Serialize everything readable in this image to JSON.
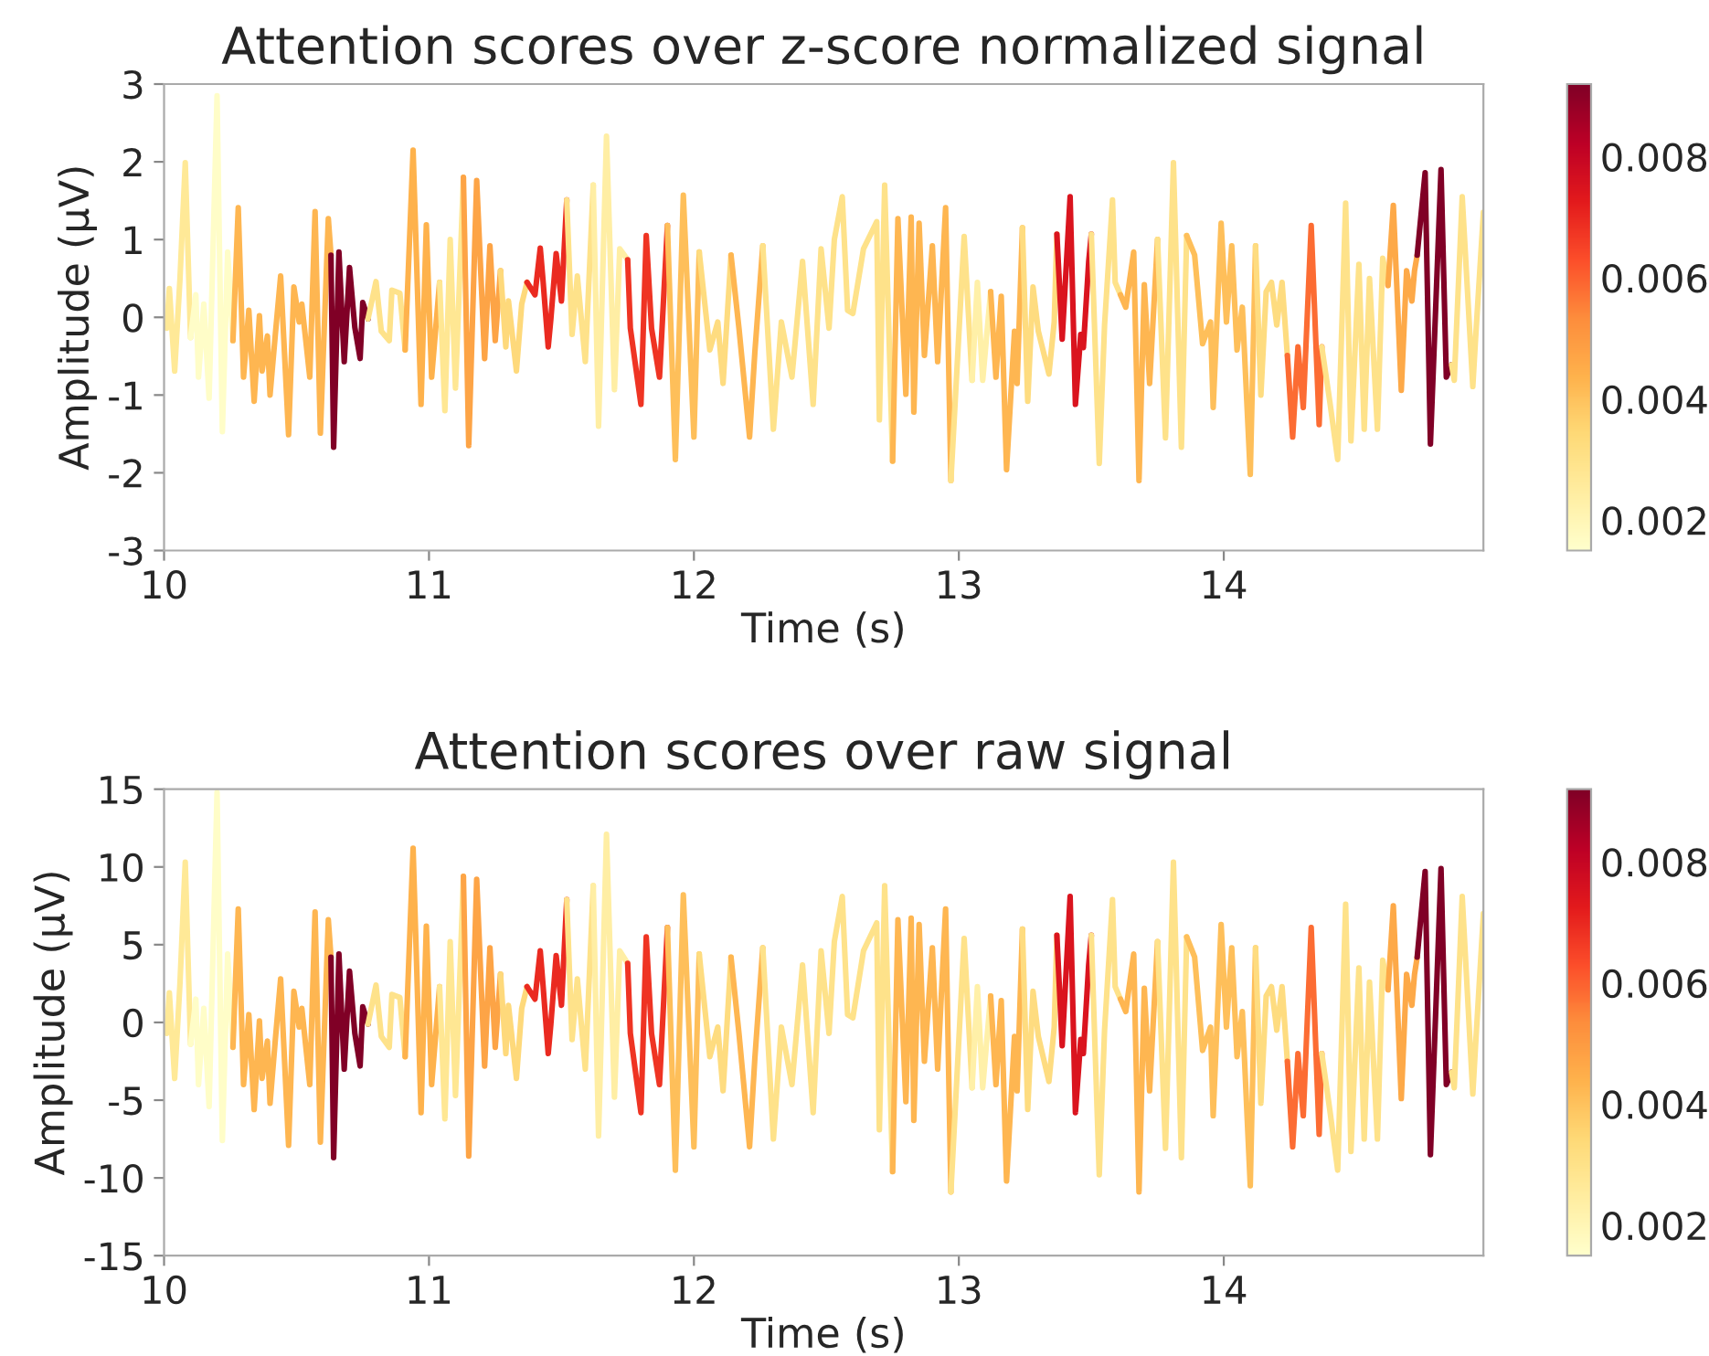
{
  "chart_data": [
    {
      "type": "line",
      "title": "Attention scores over z-score normalized signal",
      "xlabel": "Time (s)",
      "ylabel": "Amplitude (µV)",
      "xlim": [
        10,
        14.98
      ],
      "xticks": [
        10,
        11,
        12,
        13,
        14
      ],
      "ylim": [
        -3,
        3
      ],
      "yticks": [
        -3,
        -2,
        -1,
        0,
        1,
        2,
        3
      ],
      "clim": [
        0.0015,
        0.0092
      ],
      "cticks": [
        0.002,
        0.004,
        0.006,
        0.008
      ],
      "grid": false,
      "series": [
        {
          "color": "#ffe997",
          "x": [
            10.01,
            10.02,
            10.04,
            10.06,
            10.08,
            10.1
          ],
          "values": [
            -0.14,
            0.37,
            -0.69,
            0.49,
            1.99,
            -0.26
          ]
        },
        {
          "color": "#fffdc8",
          "x": [
            10.1,
            10.12,
            10.13,
            10.15,
            10.17,
            10.2,
            10.22,
            10.24,
            10.26
          ],
          "values": [
            -0.26,
            0.29,
            -0.77,
            0.17,
            -1.04,
            2.85,
            -1.47,
            0.84,
            -0.3
          ]
        },
        {
          "color": "#feb651",
          "x": [
            10.26,
            10.28,
            10.3,
            10.32,
            10.34,
            10.36,
            10.37,
            10.39,
            10.4,
            10.42,
            10.44,
            10.47,
            10.49,
            10.51,
            10.52,
            10.55,
            10.57,
            10.59,
            10.62,
            10.63
          ],
          "values": [
            -0.3,
            1.41,
            -0.77,
            0.09,
            -1.08,
            0.02,
            -0.69,
            -0.24,
            -1.0,
            -0.22,
            0.53,
            -1.51,
            0.39,
            -0.06,
            0.17,
            -0.77,
            1.36,
            -1.49,
            1.27,
            0.8
          ]
        },
        {
          "color": "#800026",
          "x": [
            10.63,
            10.64,
            10.66,
            10.68,
            10.7,
            10.72,
            10.74,
            10.75,
            10.77
          ],
          "values": [
            0.8,
            -1.67,
            0.84,
            -0.57,
            0.64,
            -0.13,
            -0.53,
            0.19,
            -0.02
          ]
        },
        {
          "color": "#fee28a",
          "x": [
            10.77,
            10.8,
            10.82,
            10.85,
            10.86,
            10.89,
            10.91
          ],
          "values": [
            -0.02,
            0.46,
            -0.18,
            -0.3,
            0.35,
            0.31,
            -0.42
          ]
        },
        {
          "color": "#feb24c",
          "x": [
            10.91,
            10.94,
            10.97,
            10.99,
            11.01,
            11.04
          ],
          "values": [
            -0.42,
            2.15,
            -1.12,
            1.19,
            -0.77,
            0.45
          ]
        },
        {
          "color": "#ffe793",
          "x": [
            11.04,
            11.06,
            11.08,
            11.1,
            11.13
          ],
          "values": [
            0.45,
            -1.2,
            1.0,
            -0.91,
            1.8
          ]
        },
        {
          "color": "#fda446",
          "x": [
            11.13,
            11.15,
            11.18,
            11.21,
            11.23,
            11.25,
            11.27
          ],
          "values": [
            1.8,
            -1.65,
            1.76,
            -0.53,
            0.92,
            -0.3,
            0.6
          ]
        },
        {
          "color": "#fed97b",
          "x": [
            11.27,
            11.29,
            11.3,
            11.33,
            11.35,
            11.37
          ],
          "values": [
            0.6,
            -0.38,
            0.21,
            -0.69,
            0.17,
            0.45
          ]
        },
        {
          "color": "#ea2a20",
          "x": [
            11.37,
            11.4,
            11.42,
            11.43,
            11.45,
            11.46,
            11.48,
            11.5,
            11.52
          ],
          "values": [
            0.45,
            0.29,
            0.89,
            0.49,
            -0.38,
            -0.02,
            0.82,
            0.21,
            1.51
          ]
        },
        {
          "color": "#fee28a",
          "x": [
            11.52,
            11.54,
            11.56,
            11.59,
            11.62
          ],
          "values": [
            1.51,
            -0.22,
            0.53,
            -0.57,
            1.7
          ]
        },
        {
          "color": "#ffeea4",
          "x": [
            11.62,
            11.64,
            11.67,
            11.7,
            11.72,
            11.75
          ],
          "values": [
            1.7,
            -1.4,
            2.33,
            -0.93,
            0.88,
            0.74
          ]
        },
        {
          "color": "#ef3423",
          "x": [
            11.75,
            11.76,
            11.8,
            11.82,
            11.84,
            11.87,
            11.9
          ],
          "values": [
            0.74,
            -0.14,
            -1.12,
            1.05,
            -0.14,
            -0.77,
            1.18
          ]
        },
        {
          "color": "#febf5a",
          "x": [
            11.9,
            11.93,
            11.96,
            12.0,
            12.02
          ],
          "values": [
            1.18,
            -1.83,
            1.57,
            -1.54,
            0.84
          ]
        },
        {
          "color": "#fedc80",
          "x": [
            12.02,
            12.06,
            12.09,
            12.11,
            12.14
          ],
          "values": [
            0.84,
            -0.42,
            -0.06,
            -0.85,
            0.8
          ]
        },
        {
          "color": "#feb651",
          "x": [
            12.14,
            12.17,
            12.21,
            12.23,
            12.26
          ],
          "values": [
            0.8,
            -0.14,
            -1.54,
            -0.45,
            0.92
          ]
        },
        {
          "color": "#fee28a",
          "x": [
            12.26,
            12.3,
            12.33,
            12.37,
            12.41,
            12.45,
            12.48,
            12.51,
            12.53,
            12.56,
            12.58,
            12.6,
            12.64,
            12.69,
            12.7,
            12.72,
            12.75
          ],
          "values": [
            0.92,
            -1.44,
            -0.06,
            -0.77,
            0.72,
            -1.12,
            0.88,
            -0.14,
            1.0,
            1.55,
            0.09,
            0.05,
            0.88,
            1.23,
            -1.32,
            1.7,
            -1.85
          ]
        },
        {
          "color": "#feb651",
          "x": [
            12.75,
            12.77,
            12.8,
            12.82,
            12.83,
            12.85,
            12.87,
            12.9,
            12.92,
            12.95,
            12.97
          ],
          "values": [
            -1.85,
            1.27,
            -0.99,
            1.29,
            -1.22,
            1.21,
            -0.49,
            0.92,
            -0.57,
            1.41,
            -2.1
          ]
        },
        {
          "color": "#fee28a",
          "x": [
            12.97,
            13.02,
            13.05
          ],
          "values": [
            -2.1,
            1.04,
            -0.81
          ]
        },
        {
          "color": "#fff0a8",
          "x": [
            13.05,
            13.07,
            13.09,
            13.12
          ],
          "values": [
            -0.81,
            0.45,
            -0.81,
            0.33
          ]
        },
        {
          "color": "#feb651",
          "x": [
            13.12,
            13.14,
            13.16,
            13.18,
            13.21,
            13.22,
            13.24
          ],
          "values": [
            0.33,
            -0.77,
            0.27,
            -1.96,
            -0.18,
            -0.85,
            1.15
          ]
        },
        {
          "color": "#fedc80",
          "x": [
            13.24,
            13.26,
            13.28,
            13.3,
            13.34,
            13.36,
            13.37
          ],
          "values": [
            1.15,
            -1.08,
            0.39,
            -0.18,
            -0.73,
            -0.06,
            1.07
          ]
        },
        {
          "color": "#da141e",
          "x": [
            13.37,
            13.39,
            13.42,
            13.44,
            13.46,
            13.47,
            13.49,
            13.5
          ],
          "values": [
            1.07,
            -0.28,
            1.55,
            -1.12,
            -0.22,
            -0.39,
            0.71,
            1.07
          ]
        },
        {
          "color": "#fee28a",
          "x": [
            13.5,
            13.53,
            13.55,
            13.58,
            13.59,
            13.61
          ],
          "values": [
            1.07,
            -1.88,
            -0.1,
            1.51,
            0.45,
            0.29
          ]
        },
        {
          "color": "#feb651",
          "x": [
            13.61,
            13.63,
            13.66,
            13.68,
            13.7,
            13.72,
            13.75
          ],
          "values": [
            0.29,
            0.13,
            0.84,
            -2.1,
            0.42,
            -0.85,
            1.0
          ]
        },
        {
          "color": "#fee28a",
          "x": [
            13.75,
            13.78,
            13.81,
            13.84,
            13.86
          ],
          "values": [
            1.0,
            -1.55,
            1.99,
            -1.67,
            1.05
          ]
        },
        {
          "color": "#febf5a",
          "x": [
            13.86,
            13.89,
            13.92,
            13.95,
            13.96,
            13.99,
            14.01,
            14.03,
            14.05,
            14.07,
            14.1,
            14.12
          ],
          "values": [
            1.05,
            0.8,
            -0.34,
            -0.06,
            -1.16,
            1.21,
            -0.06,
            0.92,
            -0.42,
            0.13,
            -2.02,
            0.92
          ]
        },
        {
          "color": "#fedc80",
          "x": [
            14.12,
            14.14,
            14.16,
            14.18,
            14.2,
            14.22,
            14.24
          ],
          "values": [
            0.92,
            -1.0,
            0.33,
            0.45,
            -0.1,
            0.45,
            -0.49
          ]
        },
        {
          "color": "#fc6c33",
          "x": [
            14.24,
            14.26,
            14.28,
            14.3,
            14.33,
            14.36,
            14.37
          ],
          "values": [
            -0.49,
            -1.54,
            -0.38,
            -1.16,
            1.18,
            -1.38,
            -0.38
          ]
        },
        {
          "color": "#fee28a",
          "x": [
            14.37,
            14.4,
            14.43,
            14.46,
            14.48,
            14.51,
            14.53,
            14.55,
            14.58,
            14.6,
            14.62
          ],
          "values": [
            -0.38,
            -1.08,
            -1.83,
            1.47,
            -1.59,
            0.68,
            -1.44,
            0.5,
            -1.44,
            0.76,
            0.41
          ]
        },
        {
          "color": "#fda948",
          "x": [
            14.62,
            14.64,
            14.67,
            14.69,
            14.71,
            14.72,
            14.73
          ],
          "values": [
            0.41,
            1.44,
            -0.94,
            0.6,
            0.21,
            0.6,
            0.8
          ]
        },
        {
          "color": "#800026",
          "x": [
            14.73,
            14.76,
            14.78,
            14.82,
            14.84,
            14.86
          ],
          "values": [
            0.8,
            1.86,
            -1.63,
            1.9,
            -0.77,
            -0.61
          ]
        },
        {
          "color": "#fee28a",
          "x": [
            14.86,
            14.87,
            14.9,
            14.94,
            14.95,
            14.98
          ],
          "values": [
            -0.61,
            -0.81,
            1.55,
            -0.89,
            -0.3,
            1.35
          ]
        }
      ]
    },
    {
      "type": "line",
      "title": "Attention scores over raw signal",
      "xlabel": "Time (s)",
      "ylabel": "Amplitude (µV)",
      "xlim": [
        10,
        14.98
      ],
      "xticks": [
        10,
        11,
        12,
        13,
        14
      ],
      "ylim": [
        -15,
        15
      ],
      "yticks": [
        -15,
        -10,
        -5,
        0,
        5,
        10,
        15
      ],
      "clim": [
        0.0015,
        0.0092
      ],
      "cticks": [
        0.002,
        0.004,
        0.006,
        0.008
      ],
      "grid": false,
      "series": [
        {
          "color": "#ffe997",
          "x": [
            10.01,
            10.02,
            10.04,
            10.06,
            10.08,
            10.1
          ],
          "values": [
            -0.7,
            1.9,
            -3.6,
            2.5,
            10.3,
            -1.4
          ]
        },
        {
          "color": "#fffdc8",
          "x": [
            10.1,
            10.12,
            10.13,
            10.15,
            10.17,
            10.2,
            10.22,
            10.24,
            10.26
          ],
          "values": [
            -1.4,
            1.5,
            -4.0,
            0.9,
            -5.4,
            14.8,
            -7.6,
            4.4,
            -1.6
          ]
        },
        {
          "color": "#feb651",
          "x": [
            10.26,
            10.28,
            10.3,
            10.32,
            10.34,
            10.36,
            10.37,
            10.39,
            10.4,
            10.42,
            10.44,
            10.47,
            10.49,
            10.51,
            10.52,
            10.55,
            10.57,
            10.59,
            10.62,
            10.63
          ],
          "values": [
            -1.6,
            7.3,
            -4.0,
            0.5,
            -5.6,
            0.1,
            -3.6,
            -1.2,
            -5.2,
            -1.1,
            2.8,
            -7.9,
            2.0,
            -0.3,
            0.9,
            -4.0,
            7.1,
            -7.7,
            6.6,
            4.2
          ]
        },
        {
          "color": "#800026",
          "x": [
            10.63,
            10.64,
            10.66,
            10.68,
            10.7,
            10.72,
            10.74,
            10.75,
            10.77
          ],
          "values": [
            4.2,
            -8.7,
            4.4,
            -3.0,
            3.3,
            -0.7,
            -2.8,
            1.0,
            -0.1
          ]
        },
        {
          "color": "#fee28a",
          "x": [
            10.77,
            10.8,
            10.82,
            10.85,
            10.86,
            10.89,
            10.91
          ],
          "values": [
            -0.1,
            2.4,
            -0.9,
            -1.6,
            1.8,
            1.6,
            -2.2
          ]
        },
        {
          "color": "#feb24c",
          "x": [
            10.91,
            10.94,
            10.97,
            10.99,
            11.01,
            11.04
          ],
          "values": [
            -2.2,
            11.2,
            -5.8,
            6.2,
            -4.0,
            2.3
          ]
        },
        {
          "color": "#ffe793",
          "x": [
            11.04,
            11.06,
            11.08,
            11.1,
            11.13
          ],
          "values": [
            2.3,
            -6.2,
            5.2,
            -4.7,
            9.4
          ]
        },
        {
          "color": "#fda446",
          "x": [
            11.13,
            11.15,
            11.18,
            11.21,
            11.23,
            11.25,
            11.27
          ],
          "values": [
            9.4,
            -8.6,
            9.2,
            -2.8,
            4.8,
            -1.6,
            3.1
          ]
        },
        {
          "color": "#fed97b",
          "x": [
            11.27,
            11.29,
            11.3,
            11.33,
            11.35,
            11.37
          ],
          "values": [
            3.1,
            -2.0,
            1.1,
            -3.6,
            0.9,
            2.3
          ]
        },
        {
          "color": "#ea2a20",
          "x": [
            11.37,
            11.4,
            11.42,
            11.43,
            11.45,
            11.46,
            11.48,
            11.5,
            11.52
          ],
          "values": [
            2.3,
            1.5,
            4.6,
            2.5,
            -2.0,
            -0.1,
            4.3,
            1.1,
            7.9
          ]
        },
        {
          "color": "#fee28a",
          "x": [
            11.52,
            11.54,
            11.56,
            11.59,
            11.62
          ],
          "values": [
            7.9,
            -1.1,
            2.8,
            -3.0,
            8.8
          ]
        },
        {
          "color": "#ffeea4",
          "x": [
            11.62,
            11.64,
            11.67,
            11.7,
            11.72,
            11.75
          ],
          "values": [
            8.8,
            -7.3,
            12.1,
            -4.8,
            4.6,
            3.8
          ]
        },
        {
          "color": "#ef3423",
          "x": [
            11.75,
            11.76,
            11.8,
            11.82,
            11.84,
            11.87,
            11.9
          ],
          "values": [
            3.8,
            -0.7,
            -5.8,
            5.5,
            -0.7,
            -4.0,
            6.1
          ]
        },
        {
          "color": "#febf5a",
          "x": [
            11.9,
            11.93,
            11.96,
            12.0,
            12.02
          ],
          "values": [
            6.1,
            -9.5,
            8.2,
            -8.0,
            4.4
          ]
        },
        {
          "color": "#fedc80",
          "x": [
            12.02,
            12.06,
            12.09,
            12.11,
            12.14
          ],
          "values": [
            4.4,
            -2.2,
            -0.3,
            -4.4,
            4.2
          ]
        },
        {
          "color": "#feb651",
          "x": [
            12.14,
            12.17,
            12.21,
            12.23,
            12.26
          ],
          "values": [
            4.2,
            -0.7,
            -8.0,
            -2.3,
            4.8
          ]
        },
        {
          "color": "#fee28a",
          "x": [
            12.26,
            12.3,
            12.33,
            12.37,
            12.41,
            12.45,
            12.48,
            12.51,
            12.53,
            12.56,
            12.58,
            12.6,
            12.64,
            12.69,
            12.7,
            12.72,
            12.75
          ],
          "values": [
            4.8,
            -7.5,
            -0.3,
            -4.0,
            3.7,
            -5.8,
            4.6,
            -0.7,
            5.2,
            8.1,
            0.5,
            0.3,
            4.6,
            6.4,
            -6.9,
            8.8,
            -9.6
          ]
        },
        {
          "color": "#feb651",
          "x": [
            12.75,
            12.77,
            12.8,
            12.82,
            12.83,
            12.85,
            12.87,
            12.9,
            12.92,
            12.95,
            12.97
          ],
          "values": [
            -9.6,
            6.6,
            -5.1,
            6.7,
            -6.3,
            6.3,
            -2.5,
            4.8,
            -3.0,
            7.3,
            -10.9
          ]
        },
        {
          "color": "#fee28a",
          "x": [
            12.97,
            13.02,
            13.05
          ],
          "values": [
            -10.9,
            5.4,
            -4.2
          ]
        },
        {
          "color": "#fff0a8",
          "x": [
            13.05,
            13.07,
            13.09,
            13.12
          ],
          "values": [
            -4.2,
            2.3,
            -4.2,
            1.7
          ]
        },
        {
          "color": "#feb651",
          "x": [
            13.12,
            13.14,
            13.16,
            13.18,
            13.21,
            13.22,
            13.24
          ],
          "values": [
            1.7,
            -4.0,
            1.4,
            -10.2,
            -0.9,
            -4.4,
            6.0
          ]
        },
        {
          "color": "#fedc80",
          "x": [
            13.24,
            13.26,
            13.28,
            13.3,
            13.34,
            13.36,
            13.37
          ],
          "values": [
            6.0,
            -5.6,
            2.0,
            -0.9,
            -3.8,
            -0.3,
            5.6
          ]
        },
        {
          "color": "#da141e",
          "x": [
            13.37,
            13.39,
            13.42,
            13.44,
            13.46,
            13.47,
            13.49,
            13.5
          ],
          "values": [
            5.6,
            -1.5,
            8.1,
            -5.8,
            -1.1,
            -2.0,
            3.7,
            5.6
          ]
        },
        {
          "color": "#fee28a",
          "x": [
            13.5,
            13.53,
            13.55,
            13.58,
            13.59,
            13.61
          ],
          "values": [
            5.6,
            -9.8,
            -0.5,
            7.9,
            2.3,
            1.5
          ]
        },
        {
          "color": "#feb651",
          "x": [
            13.61,
            13.63,
            13.66,
            13.68,
            13.7,
            13.72,
            13.75
          ],
          "values": [
            1.5,
            0.7,
            4.4,
            -10.9,
            2.2,
            -4.4,
            5.2
          ]
        },
        {
          "color": "#fee28a",
          "x": [
            13.75,
            13.78,
            13.81,
            13.84,
            13.86
          ],
          "values": [
            5.2,
            -8.1,
            10.3,
            -8.7,
            5.5
          ]
        },
        {
          "color": "#febf5a",
          "x": [
            13.86,
            13.89,
            13.92,
            13.95,
            13.96,
            13.99,
            14.01,
            14.03,
            14.05,
            14.07,
            14.1,
            14.12
          ],
          "values": [
            5.5,
            4.2,
            -1.8,
            -0.3,
            -6.0,
            6.3,
            -0.3,
            4.8,
            -2.2,
            0.7,
            -10.5,
            4.8
          ]
        },
        {
          "color": "#fedc80",
          "x": [
            14.12,
            14.14,
            14.16,
            14.18,
            14.2,
            14.22,
            14.24
          ],
          "values": [
            4.8,
            -5.2,
            1.7,
            2.3,
            -0.5,
            2.3,
            -2.5
          ]
        },
        {
          "color": "#fc6c33",
          "x": [
            14.24,
            14.26,
            14.28,
            14.3,
            14.33,
            14.36,
            14.37
          ],
          "values": [
            -2.5,
            -8.0,
            -2.0,
            -6.0,
            6.1,
            -7.2,
            -2.0
          ]
        },
        {
          "color": "#fee28a",
          "x": [
            14.37,
            14.4,
            14.43,
            14.46,
            14.48,
            14.51,
            14.53,
            14.55,
            14.58,
            14.6,
            14.62
          ],
          "values": [
            -2.0,
            -5.6,
            -9.5,
            7.6,
            -8.3,
            3.5,
            -7.5,
            2.6,
            -7.5,
            4.0,
            2.1
          ]
        },
        {
          "color": "#fda948",
          "x": [
            14.62,
            14.64,
            14.67,
            14.69,
            14.71,
            14.72,
            14.73
          ],
          "values": [
            2.1,
            7.5,
            -4.9,
            3.1,
            1.1,
            3.1,
            4.2
          ]
        },
        {
          "color": "#800026",
          "x": [
            14.73,
            14.76,
            14.78,
            14.82,
            14.84,
            14.86
          ],
          "values": [
            4.2,
            9.7,
            -8.5,
            9.9,
            -4.0,
            -3.2
          ]
        },
        {
          "color": "#fee28a",
          "x": [
            14.86,
            14.87,
            14.9,
            14.94,
            14.95,
            14.98
          ],
          "values": [
            -3.2,
            -4.2,
            8.1,
            -4.6,
            -1.6,
            7.0
          ]
        }
      ]
    }
  ]
}
